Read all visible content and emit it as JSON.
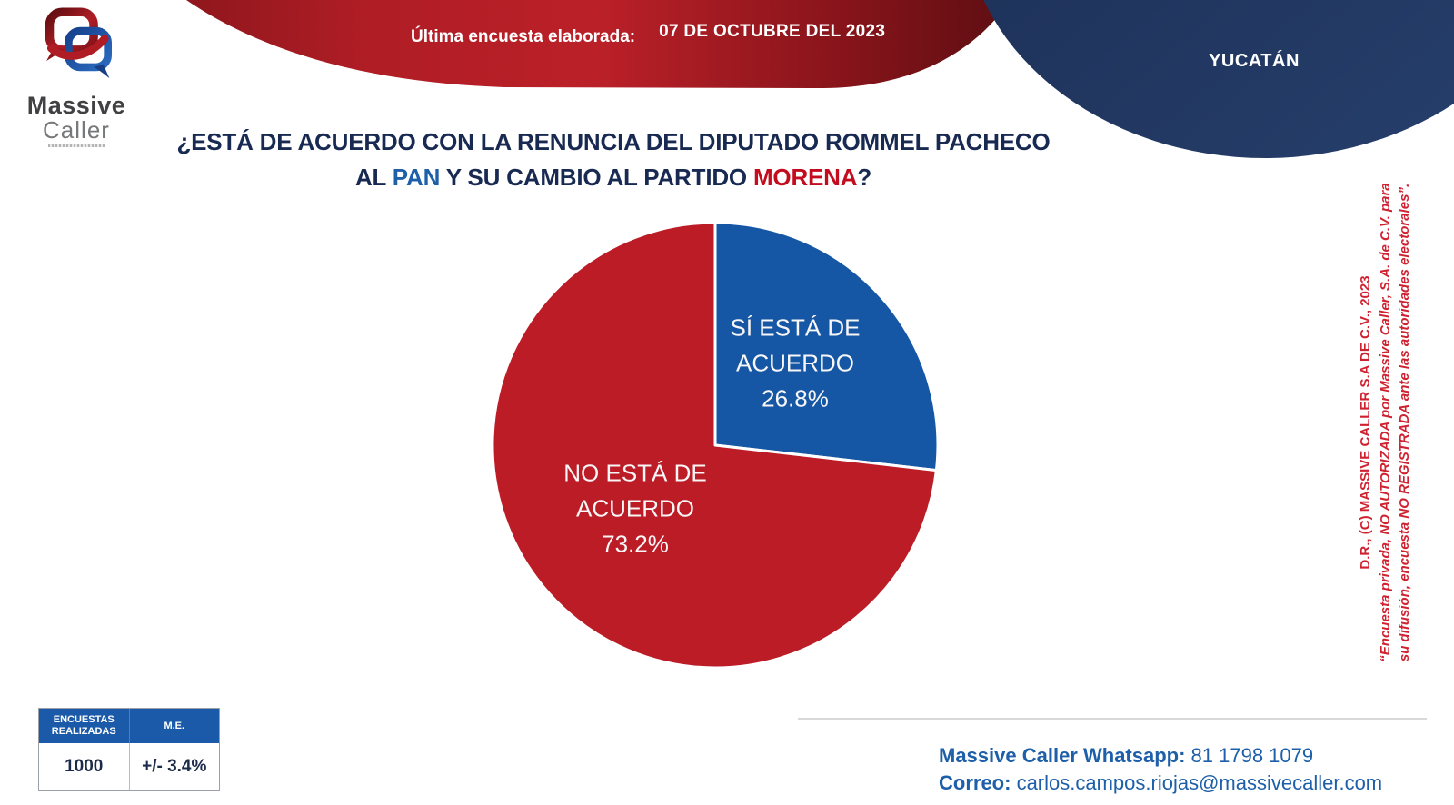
{
  "header": {
    "banner_label": "Última encuesta elaborada:",
    "banner_date": "07 DE OCTUBRE DEL 2023",
    "state": "YUCATÁN"
  },
  "logo": {
    "line1": "Massive",
    "line2": "Caller"
  },
  "title": {
    "line1": "¿ESTÁ DE ACUERDO CON LA RENUNCIA DEL DIPUTADO ROMMEL PACHECO",
    "line2_pre": "AL ",
    "pan": "PAN",
    "line2_mid": " Y SU CAMBIO AL PARTIDO ",
    "morena": "MORENA",
    "line2_post": "?"
  },
  "chart_data": {
    "type": "pie",
    "title": "¿ESTÁ DE ACUERDO CON LA RENUNCIA DEL DIPUTADO ROMMEL PACHECO AL PAN Y SU CAMBIO AL PARTIDO MORENA?",
    "categories": [
      "SÍ ESTÁ DE ACUERDO",
      "NO ESTÁ DE ACUERDO"
    ],
    "values": [
      26.8,
      73.2
    ],
    "unit": "%",
    "colors": [
      "#1557a5",
      "#bb1c26"
    ],
    "start_angle_deg": 0,
    "direction": "clockwise",
    "labels_inside": true,
    "label_lines": [
      [
        "SÍ ESTÁ DE",
        "ACUERDO"
      ],
      [
        "NO ESTÁ DE",
        "ACUERDO"
      ]
    ],
    "value_labels": [
      "26.8%",
      "73.2%"
    ]
  },
  "stats_table": {
    "headers": [
      "ENCUESTAS REALIZADAS",
      "M.E."
    ],
    "values": [
      "1000",
      "+/- 3.4%"
    ]
  },
  "disclaimer": {
    "lines": [
      "D.R., (C) MASSIVE CALLER S.A DE C.V., 2023",
      "“Encuesta privada, NO AUTORIZADA por Massive Caller, S.A. de C.V. para",
      "su difusión, encuesta NO REGISTRADA ante las autoridades electorales”."
    ]
  },
  "contact": {
    "whatsapp_label": "Massive Caller Whatsapp:",
    "whatsapp_value": " 81 1798 1079",
    "email_label": "Correo:",
    "email_value": " carlos.campos.riojas@massivecaller.com"
  },
  "colors": {
    "pie_yes_blue": "#1557a5",
    "pie_no_red": "#bb1c26",
    "banner_red_mid": "#bb2028",
    "banner_red_dark": "#5e0e12",
    "navy_ellipse": "#203562",
    "title_navy": "#192a52",
    "pan_blue": "#1d5fa8",
    "morena_red": "#c30d1e",
    "table_header_blue": "#1b5aa8",
    "contact_blue": "#1d5fa8",
    "disclaimer_red": "#cf2230"
  }
}
